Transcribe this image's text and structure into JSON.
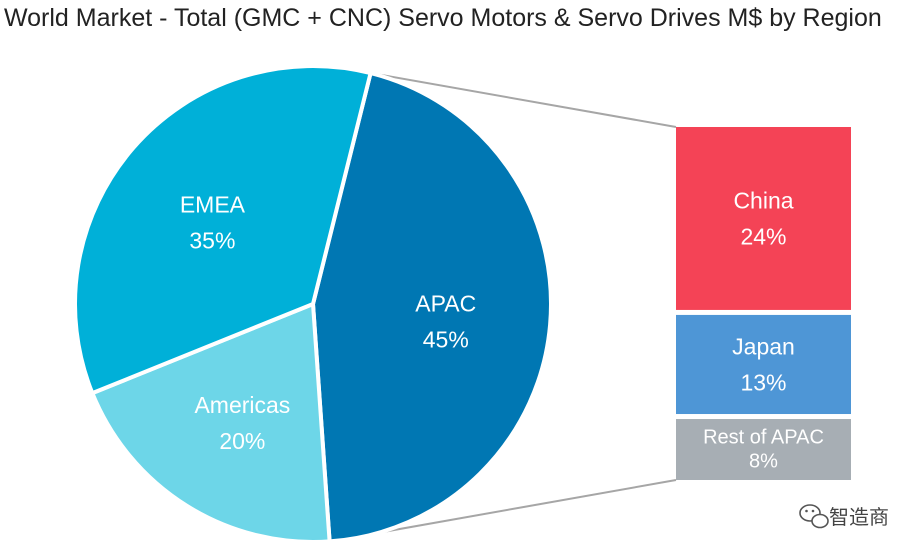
{
  "chart_data": {
    "type": "pie",
    "title": "World Market - Total (GMC + CNC) Servo Motors & Servo Drives M$ by Region",
    "slices": [
      {
        "label": "APAC",
        "value": 45,
        "value_label": "45%",
        "color": "#0077b3"
      },
      {
        "label": "Americas",
        "value": 20,
        "value_label": "20%",
        "color": "#6dd6e8"
      },
      {
        "label": "EMEA",
        "value": 35,
        "value_label": "35%",
        "color": "#00b0d8"
      }
    ],
    "breakdown_of": "APAC",
    "breakdown": [
      {
        "label": "China",
        "value": 24,
        "value_label": "24%",
        "color": "#f44356"
      },
      {
        "label": "Japan",
        "value": 13,
        "value_label": "13%",
        "color": "#4e96d6"
      },
      {
        "label": "Rest of APAC",
        "value": 8,
        "value_label": "8%",
        "color": "#a7aeb4"
      }
    ]
  },
  "watermark": {
    "text": "智造商",
    "icon": "wechat-icon"
  }
}
